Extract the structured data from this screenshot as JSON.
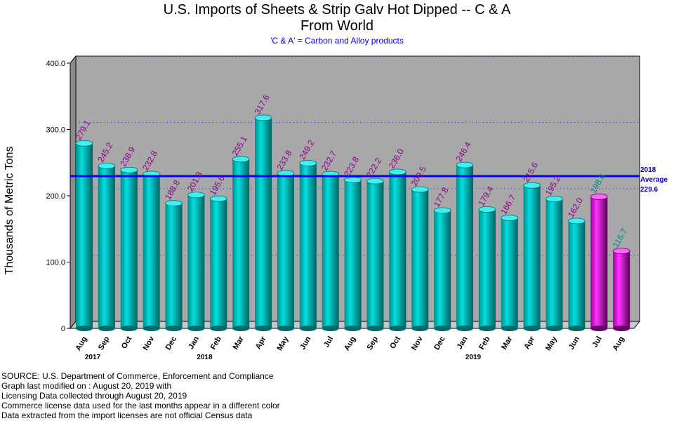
{
  "title_line1": "U.S. Imports of Sheets & Strip Galv Hot Dipped -- C & A",
  "title_line2": "From World",
  "subtitle": "'C & A' = Carbon and Alloy products",
  "ylabel": "Thousands of Metric Tons",
  "average": {
    "line1": "2018",
    "line2": "Average",
    "value_text": "229.6",
    "value": 229.6,
    "color": "#0000ee"
  },
  "source_lines": [
    "SOURCE: U.S. Department of Commerce, Enforcement and Compliance",
    "Graph last modified on : August 20, 2019    with",
    "Licensing Data collected through August 20, 2019",
    "Commerce license data used for the last months appear in a different color",
    "Data extracted from the import licenses are not official Census data"
  ],
  "colors": {
    "census": "#00b4b4",
    "license": "#cc00cc",
    "plot_bg": "#a8a8a8",
    "value_label_census": "#880088",
    "value_label_license": "#008888"
  },
  "chart_data": {
    "type": "bar",
    "categories": [
      "Aug",
      "Sep",
      "Oct",
      "Nov",
      "Dec",
      "Jan",
      "Feb",
      "Mar",
      "Apr",
      "May",
      "Jun",
      "Jul",
      "Aug",
      "Sep",
      "Oct",
      "Nov",
      "Dec",
      "Jan",
      "Feb",
      "Mar",
      "Apr",
      "May",
      "Jun",
      "Jul",
      "Aug"
    ],
    "values": [
      279.1,
      245.2,
      238.9,
      232.8,
      188.8,
      201.3,
      195.6,
      255.1,
      317.6,
      233.8,
      249.2,
      232.7,
      223.8,
      222.2,
      236.0,
      209.5,
      177.8,
      246.4,
      179.4,
      166.7,
      215.6,
      195.2,
      162.0,
      198.6,
      116.7
    ],
    "labels": [
      "279.1",
      "245.2",
      "238.9",
      "232.8",
      "188.8",
      "201.3",
      "195.6",
      "255.1",
      "317.6",
      "233.8",
      "249.2",
      "232.7",
      "223.8",
      "222.2",
      "236.0",
      "209.5",
      "177.8",
      "246.4",
      "179.4",
      "166.7",
      "215.6",
      "195.2",
      "162.0",
      "198.6",
      "116.7"
    ],
    "license_data_from_index": 23,
    "year_labels": [
      {
        "index": 0,
        "label": "2017"
      },
      {
        "index": 5,
        "label": "2018"
      },
      {
        "index": 17,
        "label": "2019"
      }
    ],
    "yticks": [
      "0",
      "100.0",
      "200.0",
      "300.0",
      "400.0"
    ],
    "ytick_values": [
      0,
      100,
      200,
      300,
      400
    ],
    "ylim": [
      0,
      400
    ],
    "grid": "dotted horizontal"
  }
}
